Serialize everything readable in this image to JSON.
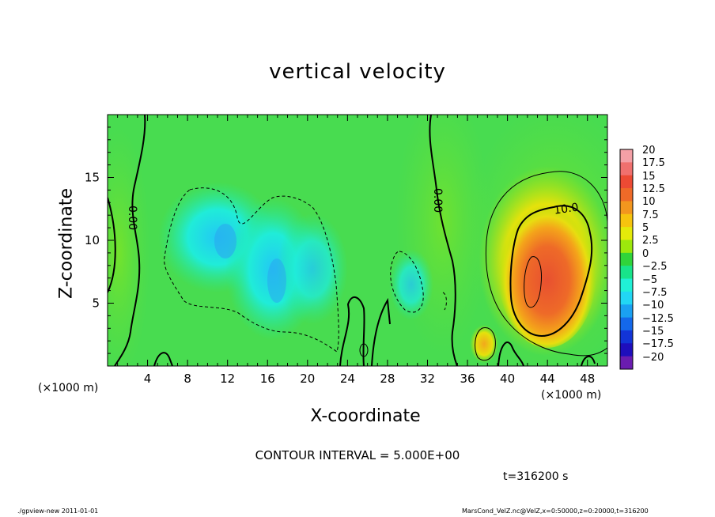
{
  "chart_data": {
    "type": "heatmap",
    "title": "vertical velocity",
    "xlabel": "X-coordinate",
    "ylabel": "Z-coordinate",
    "xlim": [
      0,
      50
    ],
    "ylim": [
      0,
      20
    ],
    "x_unit_label": "(×1000 m)",
    "x_ticks": [
      4,
      8,
      12,
      16,
      20,
      24,
      28,
      32,
      36,
      40,
      44,
      48
    ],
    "y_ticks": [
      5,
      10,
      15
    ],
    "colorbar": {
      "labels": [
        "20",
        "17.5",
        "15",
        "12.5",
        "10",
        "7.5",
        "5",
        "2.5",
        "0",
        "−2.5",
        "−5",
        "−7.5",
        "−10",
        "−12.5",
        "−15",
        "−17.5",
        "−20"
      ],
      "colors": [
        "#f4a0a6",
        "#f0706e",
        "#ec4a34",
        "#ee6a28",
        "#f2961e",
        "#f6c40e",
        "#e4ea0a",
        "#9de80c",
        "#30d43a",
        "#18e48a",
        "#20f0d6",
        "#22d6f4",
        "#1aa0f2",
        "#1468ea",
        "#1234d6",
        "#1e0ebc",
        "#6a1cb0"
      ]
    },
    "contour_labels": [
      "0.00",
      "0.00",
      "10.0"
    ],
    "features": [
      {
        "kind": "updraft",
        "x": 43,
        "z": 8,
        "peak": 15
      },
      {
        "kind": "weak updraft",
        "x": 37.5,
        "z": 1.5,
        "peak": 5
      },
      {
        "kind": "downdraft",
        "x": 11.5,
        "z": 10,
        "peak": -7.5
      },
      {
        "kind": "downdraft",
        "x": 16.5,
        "z": 7,
        "peak": -7.5
      },
      {
        "kind": "downdraft",
        "x": 30,
        "z": 6.5,
        "peak": -5
      }
    ],
    "contour_interval_text": "CONTOUR INTERVAL = 5.000E+00",
    "time_text": "t=316200 s"
  },
  "footer": {
    "left": "./gpview-new   2011-01-01",
    "right": "MarsCond_VelZ.nc@VelZ,x=0:50000,z=0:20000,t=316200"
  },
  "colors": {
    "background_field": "#4ce048",
    "contour_line": "#000000"
  }
}
